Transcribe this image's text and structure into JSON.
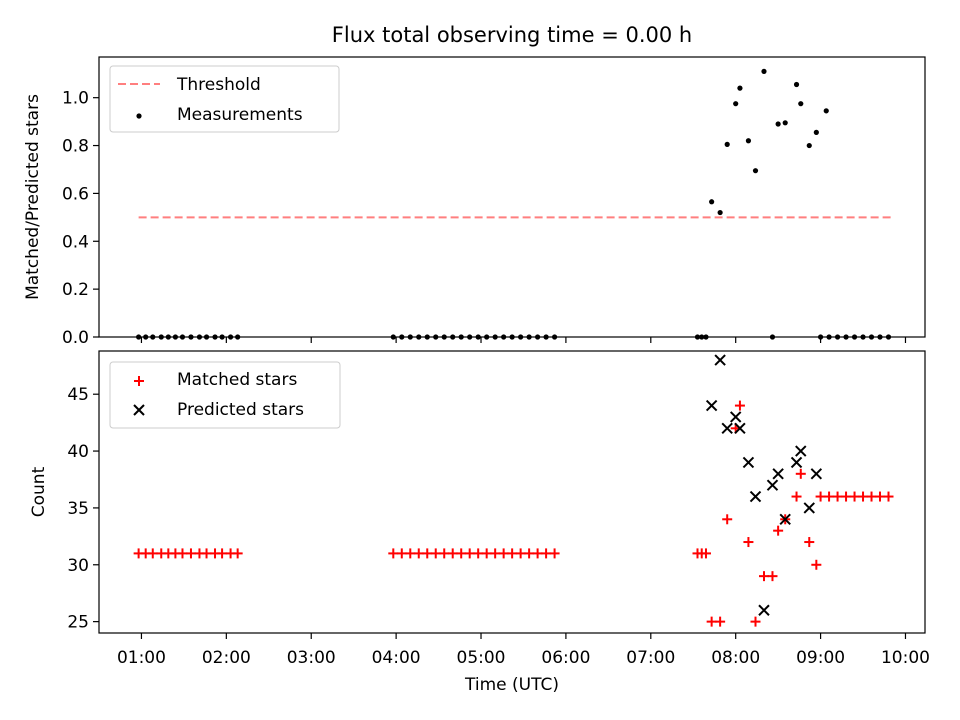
{
  "chart_data": {
    "title": "Flux total observing time = 0.00 h",
    "xlabel": "Time (UTC)",
    "x_ticks": [
      "01:00",
      "02:00",
      "03:00",
      "04:00",
      "05:00",
      "06:00",
      "07:00",
      "08:00",
      "09:00",
      "10:00"
    ],
    "x_range_hours": [
      0.5,
      10.23
    ],
    "panels": [
      {
        "type": "scatter",
        "ylabel": "Matched/Predicted stars",
        "ylim": [
          0,
          1.17
        ],
        "y_ticks": [
          0.0,
          0.2,
          0.4,
          0.6,
          0.8,
          1.0
        ],
        "y_ticks_text": [
          "0.0",
          "0.2",
          "0.4",
          "0.6",
          "0.8",
          "1.0"
        ],
        "legend_placement": "top-left",
        "threshold": {
          "name": "Threshold",
          "value": 0.5,
          "x_start": "00:58",
          "x_end": "09:50",
          "color": "#ff7f7f"
        },
        "series": [
          {
            "name": "Measurements",
            "color": "#000000",
            "marker": "dot",
            "points": [
              [
                "00:58",
                0
              ],
              [
                "01:03",
                0
              ],
              [
                "01:08",
                0
              ],
              [
                "01:14",
                0
              ],
              [
                "01:19",
                0
              ],
              [
                "01:24",
                0
              ],
              [
                "01:29",
                0
              ],
              [
                "01:35",
                0
              ],
              [
                "01:41",
                0
              ],
              [
                "01:46",
                0
              ],
              [
                "01:52",
                0
              ],
              [
                "01:57",
                0
              ],
              [
                "02:03",
                0
              ],
              [
                "02:08",
                0
              ],
              [
                "03:58",
                0
              ],
              [
                "04:04",
                0
              ],
              [
                "04:10",
                0
              ],
              [
                "04:16",
                0
              ],
              [
                "04:22",
                0
              ],
              [
                "04:28",
                0
              ],
              [
                "04:34",
                0
              ],
              [
                "04:40",
                0
              ],
              [
                "04:46",
                0
              ],
              [
                "04:52",
                0
              ],
              [
                "04:58",
                0
              ],
              [
                "05:04",
                0
              ],
              [
                "05:10",
                0
              ],
              [
                "05:16",
                0
              ],
              [
                "05:22",
                0
              ],
              [
                "05:28",
                0
              ],
              [
                "05:34",
                0
              ],
              [
                "05:40",
                0
              ],
              [
                "05:46",
                0
              ],
              [
                "05:52",
                0
              ],
              [
                "07:33",
                0
              ],
              [
                "07:36",
                0
              ],
              [
                "07:39",
                0
              ],
              [
                "07:43",
                0.565
              ],
              [
                "07:49",
                0.52
              ],
              [
                "07:54",
                0.805
              ],
              [
                "08:00",
                0.975
              ],
              [
                "08:03",
                1.04
              ],
              [
                "08:09",
                0.82
              ],
              [
                "08:14",
                0.695
              ],
              [
                "08:20",
                1.11
              ],
              [
                "08:26",
                0
              ],
              [
                "08:30",
                0.89
              ],
              [
                "08:35",
                0.895
              ],
              [
                "08:43",
                1.055
              ],
              [
                "08:46",
                0.975
              ],
              [
                "08:52",
                0.8
              ],
              [
                "08:57",
                0.855
              ],
              [
                "09:04",
                0.945
              ],
              [
                "09:00",
                0
              ],
              [
                "09:06",
                0
              ],
              [
                "09:12",
                0
              ],
              [
                "09:18",
                0
              ],
              [
                "09:24",
                0
              ],
              [
                "09:30",
                0
              ],
              [
                "09:36",
                0
              ],
              [
                "09:42",
                0
              ],
              [
                "09:48",
                0
              ]
            ]
          }
        ]
      },
      {
        "type": "scatter",
        "ylabel": "Count",
        "ylim": [
          24,
          48.8
        ],
        "y_ticks": [
          25,
          30,
          35,
          40,
          45
        ],
        "y_ticks_text": [
          "25",
          "30",
          "35",
          "40",
          "45"
        ],
        "legend_placement": "top-left",
        "series": [
          {
            "name": "Matched stars",
            "color": "#ff0000",
            "marker": "plus",
            "points": [
              [
                "00:58",
                31
              ],
              [
                "01:03",
                31
              ],
              [
                "01:08",
                31
              ],
              [
                "01:14",
                31
              ],
              [
                "01:19",
                31
              ],
              [
                "01:24",
                31
              ],
              [
                "01:29",
                31
              ],
              [
                "01:35",
                31
              ],
              [
                "01:41",
                31
              ],
              [
                "01:46",
                31
              ],
              [
                "01:52",
                31
              ],
              [
                "01:57",
                31
              ],
              [
                "02:03",
                31
              ],
              [
                "02:08",
                31
              ],
              [
                "03:58",
                31
              ],
              [
                "04:04",
                31
              ],
              [
                "04:10",
                31
              ],
              [
                "04:16",
                31
              ],
              [
                "04:22",
                31
              ],
              [
                "04:28",
                31
              ],
              [
                "04:34",
                31
              ],
              [
                "04:40",
                31
              ],
              [
                "04:46",
                31
              ],
              [
                "04:52",
                31
              ],
              [
                "04:58",
                31
              ],
              [
                "05:04",
                31
              ],
              [
                "05:10",
                31
              ],
              [
                "05:16",
                31
              ],
              [
                "05:22",
                31
              ],
              [
                "05:28",
                31
              ],
              [
                "05:34",
                31
              ],
              [
                "05:40",
                31
              ],
              [
                "05:46",
                31
              ],
              [
                "05:52",
                31
              ],
              [
                "07:33",
                31
              ],
              [
                "07:36",
                31
              ],
              [
                "07:39",
                31
              ],
              [
                "07:43",
                25
              ],
              [
                "07:49",
                25
              ],
              [
                "07:54",
                34
              ],
              [
                "08:00",
                42
              ],
              [
                "08:03",
                44
              ],
              [
                "08:09",
                32
              ],
              [
                "08:14",
                25
              ],
              [
                "08:20",
                29
              ],
              [
                "08:26",
                29
              ],
              [
                "08:30",
                33
              ],
              [
                "08:35",
                34
              ],
              [
                "08:43",
                36
              ],
              [
                "08:46",
                38
              ],
              [
                "08:52",
                32
              ],
              [
                "08:57",
                30
              ],
              [
                "09:00",
                36
              ],
              [
                "09:06",
                36
              ],
              [
                "09:12",
                36
              ],
              [
                "09:18",
                36
              ],
              [
                "09:24",
                36
              ],
              [
                "09:30",
                36
              ],
              [
                "09:36",
                36
              ],
              [
                "09:42",
                36
              ],
              [
                "09:48",
                36
              ]
            ]
          },
          {
            "name": "Predicted stars",
            "color": "#000000",
            "marker": "x",
            "points": [
              [
                "07:43",
                44
              ],
              [
                "07:49",
                48
              ],
              [
                "07:54",
                42
              ],
              [
                "08:00",
                43
              ],
              [
                "08:03",
                42
              ],
              [
                "08:09",
                39
              ],
              [
                "08:14",
                36
              ],
              [
                "08:20",
                26
              ],
              [
                "08:26",
                37
              ],
              [
                "08:30",
                38
              ],
              [
                "08:35",
                34
              ],
              [
                "08:43",
                39
              ],
              [
                "08:46",
                40
              ],
              [
                "08:52",
                35
              ],
              [
                "08:57",
                38
              ]
            ]
          }
        ]
      }
    ]
  }
}
